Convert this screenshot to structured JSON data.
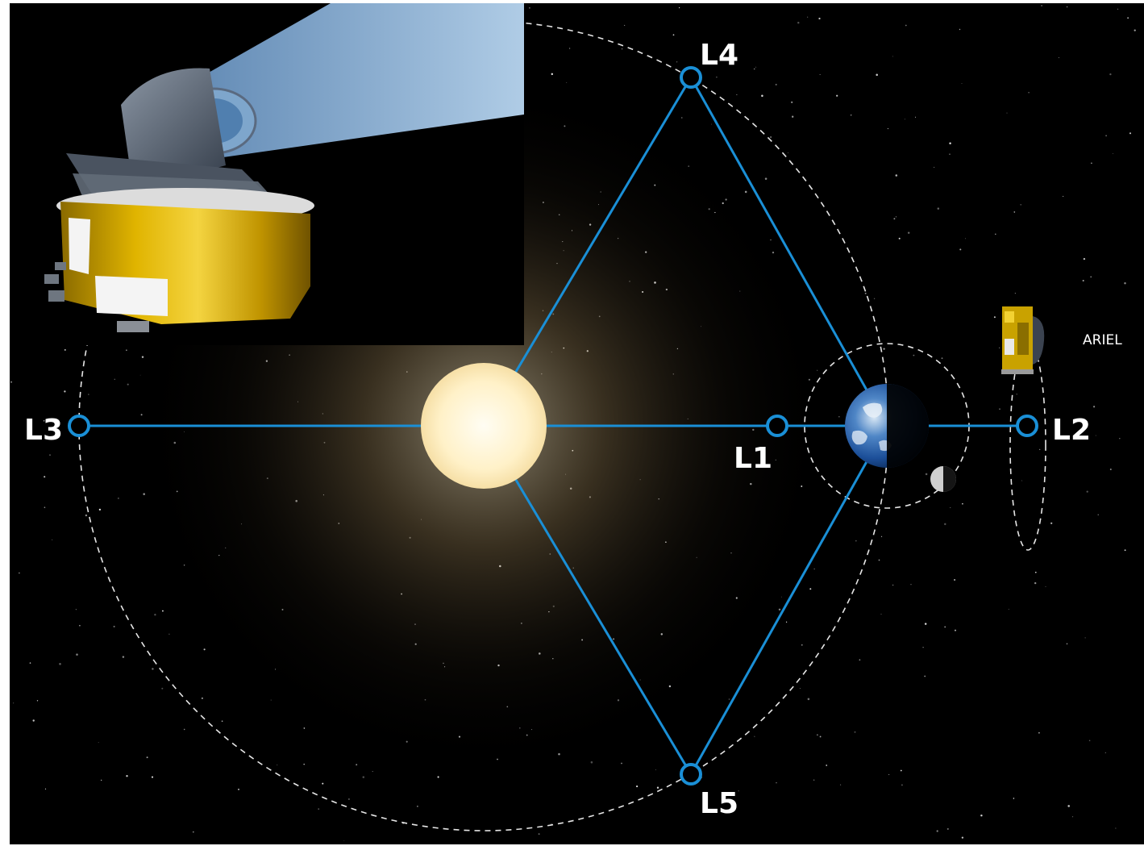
{
  "points": {
    "L1": {
      "label": "L1"
    },
    "L2": {
      "label": "L2"
    },
    "L3": {
      "label": "L3"
    },
    "L4": {
      "label": "L4"
    },
    "L5": {
      "label": "L5"
    }
  },
  "spacecraft": {
    "label": "ARIEL"
  },
  "colors": {
    "connector": "#1a8fd6",
    "orbit": "#e6e6e6",
    "space": "#000000",
    "sun_core": "#fff3cf",
    "gold_foil": "#d4a800"
  }
}
